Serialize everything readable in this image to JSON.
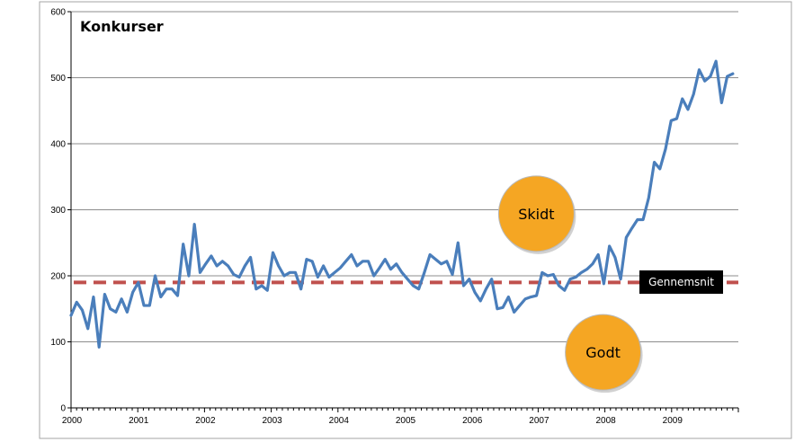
{
  "chart_data": {
    "type": "line",
    "title": "Konkurser",
    "xlabel": "",
    "ylabel": "",
    "ylim": [
      0,
      600
    ],
    "yticks": [
      0,
      100,
      200,
      300,
      400,
      500,
      600
    ],
    "x_tick_labels": [
      "2000",
      "2001",
      "2002",
      "2003",
      "2004",
      "2005",
      "2006",
      "2007",
      "2008",
      "2009"
    ],
    "x_start": 2000,
    "x_end": 2009.917,
    "grid": true,
    "legend": "none",
    "series": [
      {
        "color": "#4a7ebb",
        "values": [
          140,
          160,
          148,
          120,
          168,
          92,
          172,
          150,
          145,
          165,
          145,
          175,
          190,
          155,
          155,
          200,
          168,
          180,
          180,
          170,
          248,
          200,
          278,
          205,
          218,
          230,
          215,
          222,
          215,
          202,
          198,
          215,
          228,
          180,
          185,
          178,
          235,
          215,
          200,
          205,
          205,
          180,
          225,
          222,
          198,
          215,
          198,
          205,
          212,
          222,
          232,
          215,
          222,
          222,
          200,
          212,
          225,
          210,
          218,
          205,
          195,
          185,
          180,
          205,
          232,
          225,
          218,
          222,
          202,
          250,
          185,
          195,
          175,
          162,
          180,
          195,
          150,
          152,
          168,
          145,
          155,
          165,
          168,
          170,
          205,
          200,
          202,
          185,
          178,
          195,
          198,
          205,
          210,
          218,
          232,
          188,
          245,
          228,
          195,
          258,
          272,
          285,
          285,
          318,
          372,
          362,
          392,
          435,
          438,
          468,
          452,
          475,
          512,
          495,
          502,
          525,
          462,
          502,
          506
        ]
      }
    ],
    "reference_line": {
      "label": "Gennemsnit",
      "value": 190,
      "color": "#c0504d"
    },
    "annotations": [
      {
        "text": "Skidt",
        "x": 2007.0,
        "y": 305,
        "color": "#f5a623"
      },
      {
        "text": "Godt",
        "x": 2008.0,
        "y": 95,
        "color": "#f5a623"
      }
    ]
  }
}
